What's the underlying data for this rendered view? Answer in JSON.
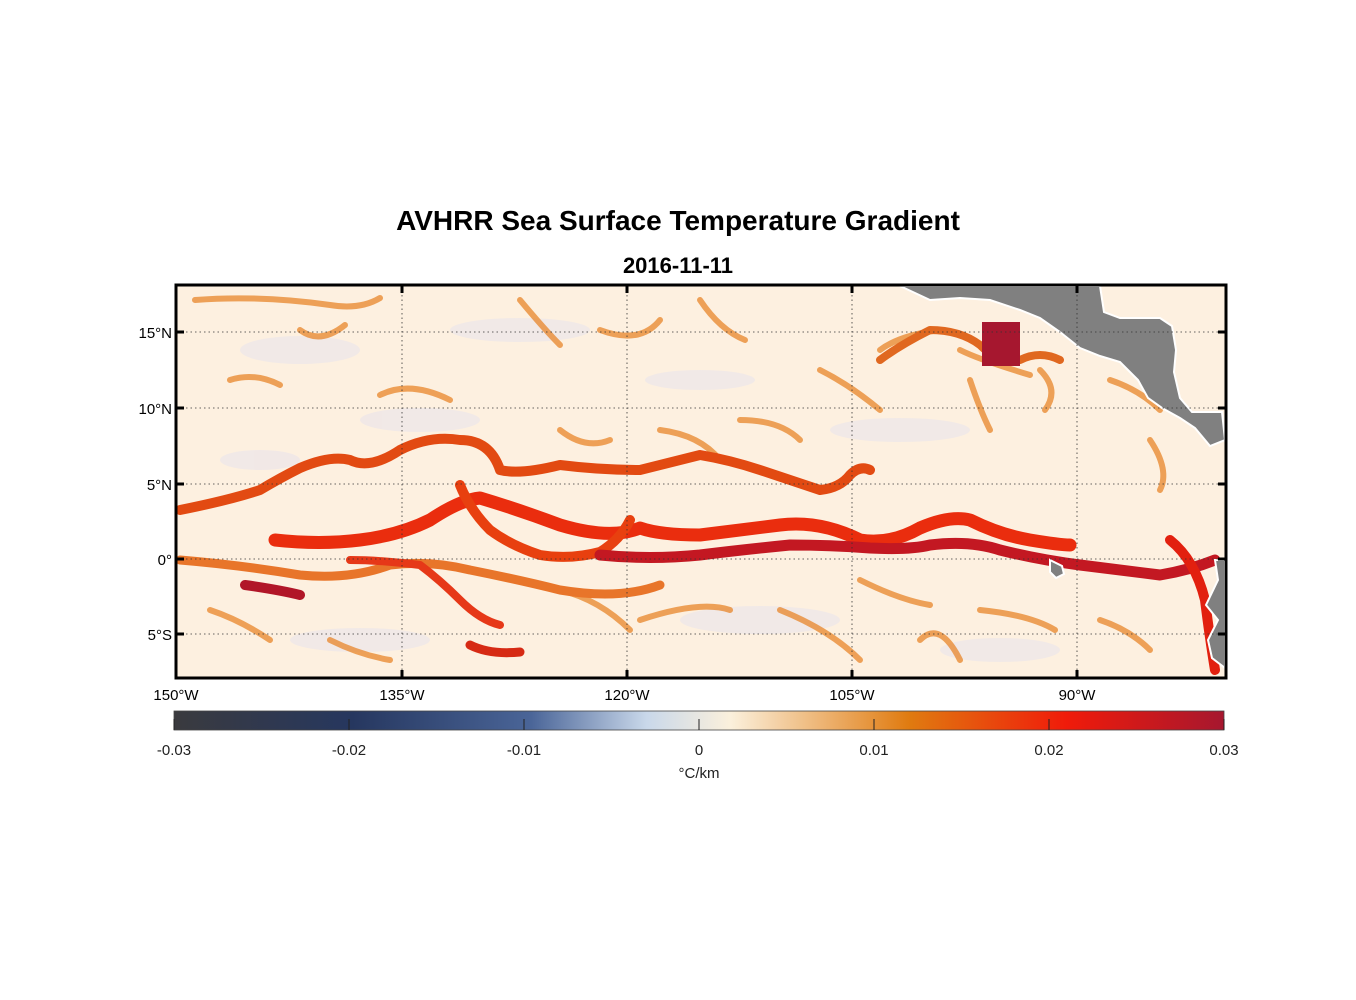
{
  "title": "AVHRR Sea Surface Temperature Gradient",
  "subtitle": "2016-11-11",
  "map": {
    "lon_range": [
      -150,
      -80
    ],
    "lat_range": [
      -8,
      18
    ],
    "grid": true,
    "lat_ticks": [
      {
        "value": 15,
        "label": "15°N"
      },
      {
        "value": 10,
        "label": "10°N"
      },
      {
        "value": 5,
        "label": "5°N"
      },
      {
        "value": 0,
        "label": "0°"
      },
      {
        "value": -5,
        "label": "5°S"
      }
    ],
    "lon_ticks": [
      {
        "value": -150,
        "label": "150°W"
      },
      {
        "value": -135,
        "label": "135°W"
      },
      {
        "value": -120,
        "label": "120°W"
      },
      {
        "value": -105,
        "label": "105°W"
      },
      {
        "value": -90,
        "label": "90°W"
      }
    ],
    "land_color": "#808080",
    "ocean_background": "#fdf0e0",
    "features": [
      {
        "name": "Central America",
        "type": "land"
      },
      {
        "name": "South America",
        "type": "land"
      },
      {
        "name": "Galapagos",
        "type": "land"
      }
    ]
  },
  "colorbar": {
    "range": [
      -0.03,
      0.03
    ],
    "ticks": [
      "-0.03",
      "-0.02",
      "-0.01",
      "0",
      "0.01",
      "0.02",
      "0.03"
    ],
    "unit_label": "°C/km",
    "colors": [
      "#3a3a3e",
      "#26375f",
      "#4a6598",
      "#c9d8ea",
      "#fbf0dc",
      "#e07b10",
      "#f01b0a",
      "#a6172f"
    ]
  },
  "chart_data": {
    "type": "heatmap",
    "title": "AVHRR Sea Surface Temperature Gradient",
    "subtitle": "2016-11-11",
    "variable": "sea surface temperature gradient",
    "units": "°C/km",
    "value_range": [
      -0.03,
      0.03
    ],
    "x": "longitude",
    "y": "latitude",
    "xlim": [
      -150,
      -80
    ],
    "ylim": [
      -8,
      18
    ]
  }
}
